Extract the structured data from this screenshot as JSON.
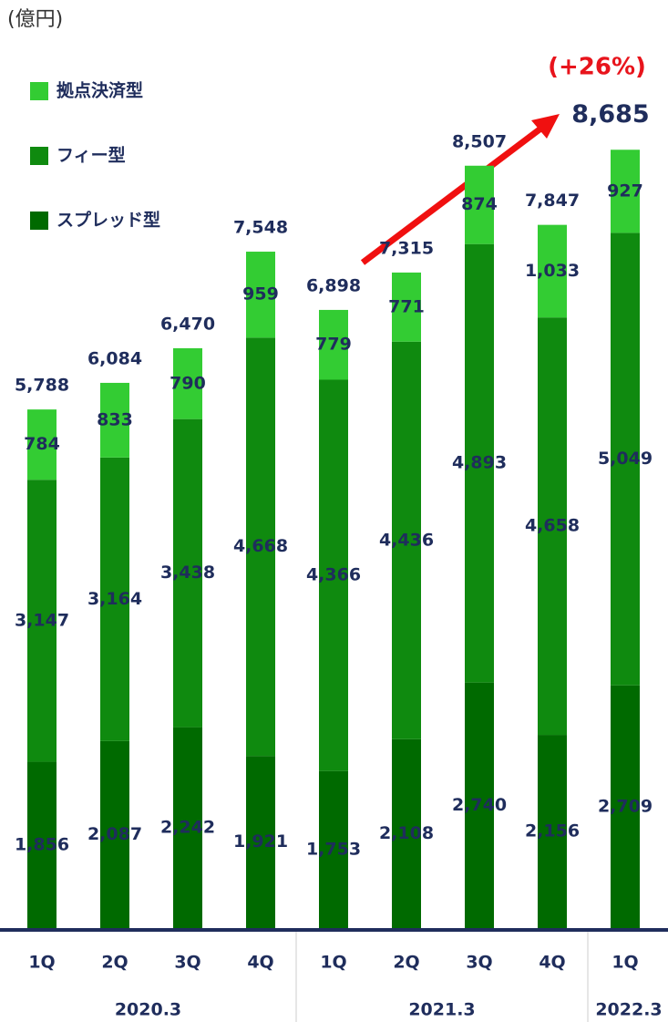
{
  "chart_data": {
    "type": "stacked_bar",
    "unit_label": "(億円)",
    "annotation": "(+26%)",
    "categories": [
      "1Q",
      "2Q",
      "3Q",
      "4Q",
      "1Q",
      "2Q",
      "3Q",
      "4Q",
      "1Q"
    ],
    "groups": [
      {
        "label": "2020.3",
        "count": 4
      },
      {
        "label": "2021.3",
        "count": 4
      },
      {
        "label": "2022.3",
        "count": 1
      }
    ],
    "series": [
      {
        "name": "スプレッド型",
        "color": "#006a00",
        "values": [
          1856,
          2087,
          2242,
          1921,
          1753,
          2108,
          2740,
          2156,
          2709
        ],
        "value_labels": [
          "1,856",
          "2,087",
          "2,242",
          "1,921",
          "1,753",
          "2,108",
          "2,740",
          "2,156",
          "2,709"
        ]
      },
      {
        "name": "フィー型",
        "color": "#0f8a0f",
        "values": [
          3147,
          3164,
          3438,
          4668,
          4366,
          4436,
          4893,
          4658,
          5049
        ],
        "value_labels": [
          "3,147",
          "3,164",
          "3,438",
          "4,668",
          "4,366",
          "4,436",
          "4,893",
          "4,658",
          "5,049"
        ]
      },
      {
        "name": "拠点決済型",
        "color": "#33cc33",
        "values": [
          784,
          833,
          790,
          959,
          779,
          771,
          874,
          1033,
          927
        ],
        "value_labels": [
          "784",
          "833",
          "790",
          "959",
          "779",
          "771",
          "874",
          "1,033",
          "927"
        ]
      }
    ],
    "totals": [
      5788,
      6084,
      6470,
      7548,
      6898,
      7315,
      8507,
      7847,
      8685
    ],
    "total_labels": [
      "5,788",
      "6,084",
      "6,470",
      "7,548",
      "6,898",
      "7,315",
      "8,507",
      "7,847",
      "8,685"
    ],
    "ylim": [
      0,
      10000
    ]
  }
}
